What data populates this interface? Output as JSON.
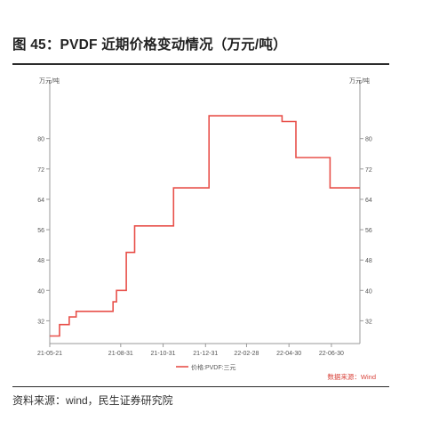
{
  "figure": {
    "title": "图 45：PVDF 近期价格变动情况（万元/吨）",
    "source": "资料来源：wind，民生证券研究院"
  },
  "chart_data": {
    "type": "line",
    "title": "",
    "unit_left": "万元/吨",
    "unit_right": "万元/吨",
    "x_ticks": [
      "21-05-21",
      "21-08-31",
      "21-10-31",
      "21-12-31",
      "22-02-28",
      "22-04-30",
      "22-06-30"
    ],
    "y_ticks": [
      32,
      40,
      48,
      56,
      64,
      72,
      80
    ],
    "ylim": [
      26,
      94
    ],
    "grid": false,
    "legend_position": "bottom-center",
    "source_note": "数据来源：Wind",
    "colors": {
      "series": "#e8504a",
      "axis": "#999999",
      "note": "#d9443c"
    },
    "series": [
      {
        "name": "价格:PVDF:三元",
        "points": [
          [
            "2021-05-21",
            28
          ],
          [
            "2021-06-04",
            28
          ],
          [
            "2021-06-04",
            31
          ],
          [
            "2021-06-18",
            31
          ],
          [
            "2021-06-18",
            33
          ],
          [
            "2021-06-28",
            33
          ],
          [
            "2021-06-28",
            34.5
          ],
          [
            "2021-08-20",
            34.5
          ],
          [
            "2021-08-20",
            37
          ],
          [
            "2021-08-25",
            37
          ],
          [
            "2021-08-25",
            40
          ],
          [
            "2021-09-08",
            40
          ],
          [
            "2021-09-08",
            50
          ],
          [
            "2021-09-20",
            50
          ],
          [
            "2021-09-20",
            57
          ],
          [
            "2021-11-15",
            57
          ],
          [
            "2021-11-15",
            67
          ],
          [
            "2022-01-05",
            67
          ],
          [
            "2022-01-05",
            86
          ],
          [
            "2022-04-20",
            86
          ],
          [
            "2022-04-20",
            84.5
          ],
          [
            "2022-05-10",
            84.5
          ],
          [
            "2022-05-10",
            75
          ],
          [
            "2022-06-28",
            75
          ],
          [
            "2022-06-28",
            67
          ],
          [
            "2022-08-10",
            67
          ]
        ]
      }
    ]
  }
}
